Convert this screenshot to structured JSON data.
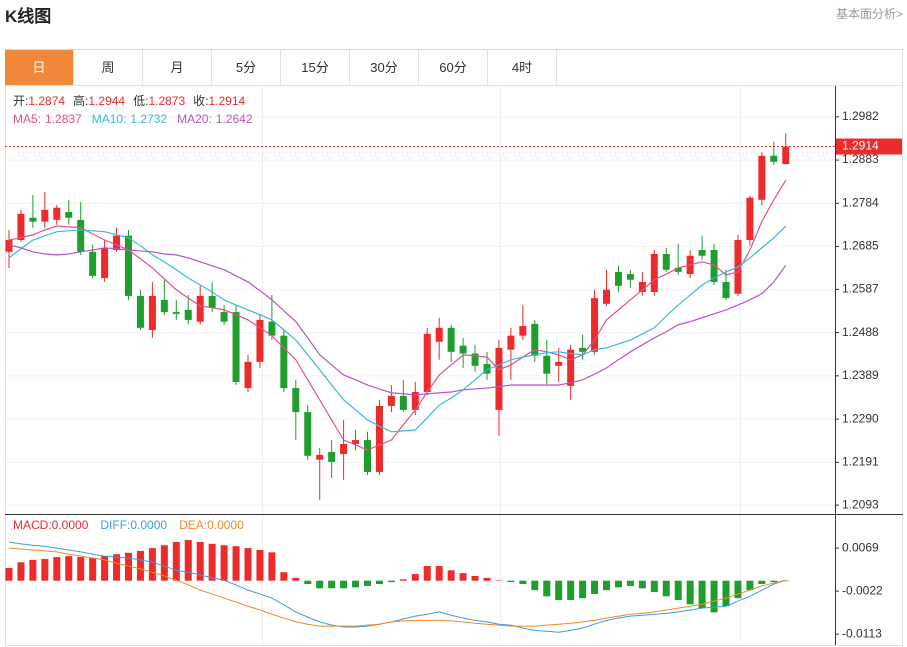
{
  "header": {
    "title": "K线图",
    "link": "基本面分析>"
  },
  "tabs": [
    "日",
    "周",
    "月",
    "5分",
    "15分",
    "30分",
    "60分",
    "4时"
  ],
  "active_tab": 0,
  "chart_data": [
    {
      "type": "candlestick",
      "info": [
        {
          "label": "开:",
          "value": 1.2874
        },
        {
          "label": "高:",
          "value": 1.2944
        },
        {
          "label": "低:",
          "value": 1.2873
        },
        {
          "label": "收:",
          "value": 1.2914
        }
      ],
      "up_color": "#ee2b2b",
      "down_color": "#1f9e2e",
      "open": [
        1.2673,
        1.27,
        1.2751,
        1.2742,
        1.2746,
        1.2764,
        1.2746,
        1.2673,
        1.2613,
        1.2677,
        1.271,
        1.2572,
        1.2494,
        1.2563,
        1.2535,
        1.254,
        1.2513,
        1.2572,
        1.2535,
        1.2535,
        1.2361,
        1.2421,
        1.2513,
        1.2481,
        1.2361,
        1.2306,
        1.2197,
        1.2215,
        1.221,
        1.2233,
        1.2242,
        1.2169,
        1.232,
        1.2343,
        1.2311,
        1.2352,
        1.2467,
        1.2499,
        1.2458,
        1.244,
        1.2416,
        1.2311,
        1.2449,
        1.2481,
        1.2508,
        1.2435,
        1.2412,
        1.2366,
        1.2453,
        1.2444,
        1.2554,
        1.2627,
        1.2622,
        1.2581,
        1.2581,
        1.2668,
        1.2636,
        1.2622,
        1.2677,
        1.2677,
        1.2604,
        1.2577,
        1.27,
        1.2792,
        1.2893,
        1.2874
      ],
      "high": [
        1.2723,
        1.2769,
        1.2803,
        1.281,
        1.278,
        1.2792,
        1.2787,
        1.2689,
        1.27,
        1.2728,
        1.2723,
        1.2586,
        1.2604,
        1.2609,
        1.2563,
        1.2574,
        1.2597,
        1.2604,
        1.2551,
        1.2551,
        1.2437,
        1.2529,
        1.2574,
        1.2494,
        1.238,
        1.2322,
        1.2224,
        1.2242,
        1.2288,
        1.2265,
        1.2261,
        1.2334,
        1.2368,
        1.238,
        1.2375,
        1.2499,
        1.2522,
        1.2506,
        1.2476,
        1.246,
        1.2444,
        1.2471,
        1.2499,
        1.2551,
        1.2517,
        1.2471,
        1.2453,
        1.246,
        1.2483,
        1.2586,
        1.2632,
        1.2641,
        1.2632,
        1.2627,
        1.2677,
        1.2682,
        1.2691,
        1.2677,
        1.271,
        1.2691,
        1.2632,
        1.2712,
        1.2801,
        1.2902,
        1.2925,
        1.2944
      ],
      "low": [
        1.2636,
        1.2696,
        1.2728,
        1.2728,
        1.2735,
        1.2735,
        1.2666,
        1.2613,
        1.2604,
        1.2673,
        1.2563,
        1.2494,
        1.2476,
        1.2529,
        1.2517,
        1.2506,
        1.2506,
        1.2535,
        1.2506,
        1.2368,
        1.2352,
        1.2407,
        1.2471,
        1.2352,
        1.2242,
        1.2197,
        1.2105,
        1.2155,
        1.2151,
        1.2219,
        1.2162,
        1.2162,
        1.2306,
        1.2306,
        1.2299,
        1.2345,
        1.2426,
        1.2421,
        1.2407,
        1.2398,
        1.238,
        1.2252,
        1.238,
        1.2471,
        1.2421,
        1.2368,
        1.2375,
        1.2334,
        1.2426,
        1.2437,
        1.2549,
        1.2581,
        1.259,
        1.2572,
        1.2572,
        1.2627,
        1.262,
        1.2613,
        1.2655,
        1.2597,
        1.2563,
        1.2572,
        1.2687,
        1.278,
        1.2872,
        1.2873
      ],
      "close": [
        1.27,
        1.276,
        1.2742,
        1.2769,
        1.2774,
        1.2751,
        1.2673,
        1.2618,
        1.2682,
        1.271,
        1.2572,
        1.2499,
        1.2572,
        1.2535,
        1.2531,
        1.2517,
        1.2572,
        1.2545,
        1.2513,
        1.2375,
        1.2421,
        1.2517,
        1.2481,
        1.2361,
        1.2306,
        1.2206,
        1.2208,
        1.2192,
        1.2233,
        1.2242,
        1.2169,
        1.232,
        1.2343,
        1.2311,
        1.2352,
        1.2485,
        1.2499,
        1.2444,
        1.244,
        1.2412,
        1.2394,
        1.2453,
        1.2481,
        1.2503,
        1.2435,
        1.2394,
        1.2421,
        1.2449,
        1.2444,
        1.2567,
        1.2586,
        1.2595,
        1.2609,
        1.2604,
        1.2668,
        1.2632,
        1.2627,
        1.2664,
        1.2664,
        1.2604,
        1.2567,
        1.27,
        1.2797,
        1.2893,
        1.2879,
        1.2914
      ],
      "series": [
        {
          "name": "MA5:",
          "current": 1.2837,
          "color": "#e4508c",
          "values": [
            1.27,
            1.2705,
            1.2712,
            1.2723,
            1.2732,
            1.273,
            1.2728,
            1.2714,
            1.27,
            1.2689,
            1.2677,
            1.2657,
            1.2636,
            1.2611,
            1.2586,
            1.2567,
            1.2549,
            1.2545,
            1.254,
            1.2529,
            1.2517,
            1.2499,
            1.2481,
            1.2453,
            1.2426,
            1.238,
            1.2334,
            1.2288,
            1.2242,
            1.2231,
            1.2219,
            1.2231,
            1.2242,
            1.2277,
            1.2311,
            1.2352,
            1.2391,
            1.2414,
            1.2437,
            1.2435,
            1.2432,
            1.2403,
            1.2414,
            1.2432,
            1.2449,
            1.2444,
            1.2437,
            1.2426,
            1.2437,
            1.2471,
            1.2517,
            1.254,
            1.2563,
            1.2586,
            1.2609,
            1.2622,
            1.2636,
            1.2643,
            1.265,
            1.2643,
            1.262,
            1.2627,
            1.2677,
            1.2742,
            1.2792,
            1.2837
          ]
        },
        {
          "name": "MA10:",
          "current": 1.2732,
          "color": "#39b9de",
          "values": [
            1.2659,
            1.268,
            1.27,
            1.271,
            1.2719,
            1.2721,
            1.2723,
            1.2721,
            1.2719,
            1.2712,
            1.2705,
            1.2687,
            1.2666,
            1.265,
            1.2632,
            1.2613,
            1.2597,
            1.2581,
            1.2563,
            1.2551,
            1.254,
            1.2529,
            1.2517,
            1.2494,
            1.2471,
            1.2437,
            1.2403,
            1.2368,
            1.2334,
            1.2311,
            1.2288,
            1.2274,
            1.2261,
            1.2263,
            1.2265,
            1.2293,
            1.2322,
            1.2338,
            1.2357,
            1.238,
            1.2403,
            1.2414,
            1.2426,
            1.2432,
            1.2437,
            1.2442,
            1.2444,
            1.244,
            1.2437,
            1.2449,
            1.2453,
            1.2462,
            1.2471,
            1.2485,
            1.2499,
            1.2526,
            1.2551,
            1.2574,
            1.2597,
            1.2613,
            1.2627,
            1.2638,
            1.2659,
            1.2682,
            1.2705,
            1.2732
          ]
        },
        {
          "name": "MA20:",
          "current": 1.2642,
          "color": "#b456c8",
          "values": [
            1.2689,
            1.2682,
            1.2673,
            1.2668,
            1.2666,
            1.2668,
            1.2673,
            1.2677,
            1.2682,
            1.268,
            1.2677,
            1.2675,
            1.2673,
            1.2668,
            1.2666,
            1.2659,
            1.265,
            1.2641,
            1.2632,
            1.2618,
            1.2604,
            1.2584,
            1.2563,
            1.2538,
            1.2513,
            1.2476,
            1.2437,
            1.2414,
            1.2391,
            1.238,
            1.2368,
            1.2359,
            1.235,
            1.2348,
            1.2345,
            1.2348,
            1.235,
            1.2352,
            1.2357,
            1.2359,
            1.2361,
            1.2364,
            1.2368,
            1.2368,
            1.2368,
            1.2368,
            1.2368,
            1.2373,
            1.238,
            1.2393,
            1.2407,
            1.2426,
            1.2444,
            1.246,
            1.2476,
            1.249,
            1.2506,
            1.2513,
            1.2522,
            1.2531,
            1.254,
            1.2551,
            1.2563,
            1.2577,
            1.2604,
            1.2642
          ]
        }
      ],
      "ylim": [
        1.2075,
        1.3048
      ],
      "yticks": [
        1.2982,
        1.2883,
        1.2784,
        1.2685,
        1.2587,
        1.2488,
        1.2389,
        {
          "value": 1.229,
          "label": "1.2290"
        },
        1.2191,
        1.2093
      ],
      "grid": true
    },
    {
      "type": "macd",
      "legend": [
        {
          "label": "MACD:",
          "value": {
            "value": 0,
            "label": "0.0000"
          },
          "color": "#ee2b2b"
        },
        {
          "label": "DIFF:",
          "value": {
            "value": 0,
            "label": "0.0000"
          },
          "color": "#3e9be6"
        },
        {
          "label": "DEA:",
          "value": {
            "value": 0,
            "label": "0.0000"
          },
          "color": "#f08a2c"
        }
      ],
      "up_color": "#ee2b2b",
      "down_color": "#1f9e2e",
      "histogram": [
        0.0027,
        0.0039,
        0.0044,
        0.0046,
        0.005,
        0.0052,
        0.005,
        0.0048,
        0.0052,
        0.0056,
        0.0059,
        0.0063,
        0.0069,
        0.0075,
        0.0082,
        0.0086,
        0.0082,
        0.0078,
        0.0075,
        0.0073,
        0.0069,
        0.0065,
        0.006,
        0.0018,
        0.0006,
        -0.0007,
        -0.0016,
        -0.0016,
        -0.0016,
        -0.0014,
        -0.0011,
        -0.0007,
        -0.0003,
        0.0003,
        0.0014,
        0.0031,
        0.0031,
        0.0022,
        0.0016,
        0.001,
        0.0006,
        0.0001,
        -0.0003,
        -0.0007,
        -0.002,
        -0.0033,
        -0.0041,
        -0.0041,
        -0.0037,
        -0.0028,
        -0.002,
        -0.0014,
        -0.0011,
        -0.0016,
        -0.0024,
        -0.0033,
        -0.0041,
        -0.005,
        -0.0058,
        -0.0067,
        -0.0054,
        -0.0037,
        -0.002,
        -0.0007,
        -0.0003,
        -0.0001
      ],
      "series": [
        {
          "color": "#3e9be6",
          "values": [
            0.0082,
            0.0078,
            0.0075,
            0.0073,
            0.0069,
            0.0065,
            0.0061,
            0.0056,
            0.0052,
            0.005,
            0.0048,
            0.0044,
            0.0039,
            0.0031,
            0.0022,
            0.0018,
            0.0012,
            0.0006,
            0.0001,
            -0.0009,
            -0.002,
            -0.0028,
            -0.0037,
            -0.0051,
            -0.0066,
            -0.0077,
            -0.0087,
            -0.0094,
            -0.0098,
            -0.0098,
            -0.0096,
            -0.0092,
            -0.0087,
            -0.0081,
            -0.0075,
            -0.0071,
            -0.0066,
            -0.0073,
            -0.0079,
            -0.0084,
            -0.0087,
            -0.0092,
            -0.0094,
            -0.01,
            -0.0105,
            -0.0107,
            -0.0109,
            -0.0105,
            -0.01,
            -0.0092,
            -0.0084,
            -0.0079,
            -0.0075,
            -0.0073,
            -0.0071,
            -0.0069,
            -0.0066,
            -0.0062,
            -0.0058,
            -0.0056,
            -0.0054,
            -0.0043,
            -0.0033,
            -0.002,
            -0.0007,
            0.0001
          ]
        },
        {
          "color": "#f08a2c",
          "values": [
            0.0069,
            0.0067,
            0.0065,
            0.0063,
            0.0061,
            0.0056,
            0.0052,
            0.0048,
            0.0044,
            0.0037,
            0.0031,
            0.0025,
            0.0018,
            0.001,
            0.0001,
            -0.0009,
            -0.002,
            -0.0028,
            -0.0037,
            -0.0045,
            -0.0054,
            -0.0062,
            -0.0071,
            -0.0079,
            -0.0087,
            -0.0092,
            -0.0096,
            -0.0096,
            -0.0096,
            -0.0096,
            -0.0094,
            -0.0092,
            -0.0087,
            -0.0085,
            -0.0084,
            -0.0084,
            -0.0084,
            -0.0085,
            -0.0087,
            -0.009,
            -0.0092,
            -0.0094,
            -0.0096,
            -0.0096,
            -0.0096,
            -0.0094,
            -0.0092,
            -0.009,
            -0.0087,
            -0.0084,
            -0.0079,
            -0.0075,
            -0.0071,
            -0.0069,
            -0.0066,
            -0.0062,
            -0.0058,
            -0.0054,
            -0.005,
            -0.0043,
            -0.0037,
            -0.0028,
            -0.002,
            -0.0011,
            -0.0005,
            0.0001
          ]
        }
      ],
      "ylim": [
        -0.0136,
        0.0139
      ],
      "yticks": [
        0.0069,
        -0.0022,
        -0.0113
      ]
    }
  ]
}
